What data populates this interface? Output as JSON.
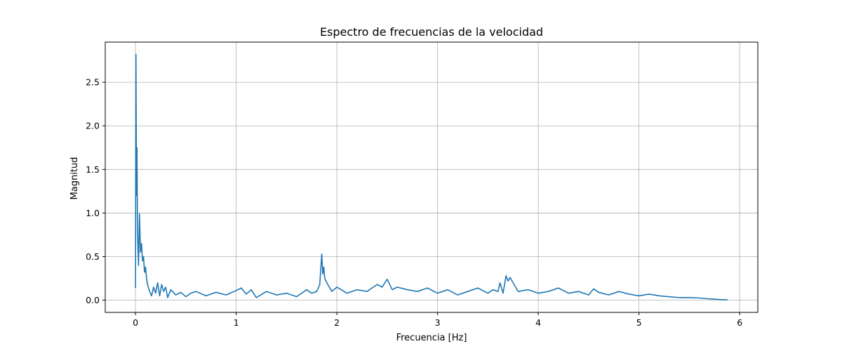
{
  "chart_data": {
    "type": "line",
    "title": "Espectro de frecuencias de la velocidad",
    "xlabel": "Frecuencia [Hz]",
    "ylabel": "Magnitud",
    "xlim": [
      -0.3,
      6.18
    ],
    "ylim": [
      -0.14,
      2.96
    ],
    "xticks": [
      0,
      1,
      2,
      3,
      4,
      5,
      6
    ],
    "xtick_labels": [
      "0",
      "1",
      "2",
      "3",
      "4",
      "5",
      "6"
    ],
    "yticks": [
      0.0,
      0.5,
      1.0,
      1.5,
      2.0,
      2.5
    ],
    "ytick_labels": [
      "0.0",
      "0.5",
      "1.0",
      "1.5",
      "2.0",
      "2.5"
    ],
    "grid": true,
    "line_color": "#1f77b4",
    "series": [
      {
        "x": [
          0.0,
          0.005,
          0.01,
          0.015,
          0.02,
          0.03,
          0.04,
          0.05,
          0.06,
          0.07,
          0.08,
          0.09,
          0.1,
          0.11,
          0.12,
          0.14,
          0.16,
          0.18,
          0.2,
          0.22,
          0.24,
          0.26,
          0.28,
          0.3,
          0.32,
          0.35,
          0.4,
          0.45,
          0.5,
          0.55,
          0.6,
          0.7,
          0.8,
          0.9,
          1.0,
          1.05,
          1.1,
          1.15,
          1.2,
          1.3,
          1.4,
          1.5,
          1.6,
          1.7,
          1.75,
          1.8,
          1.83,
          1.85,
          1.86,
          1.87,
          1.88,
          1.9,
          1.95,
          2.0,
          2.1,
          2.2,
          2.3,
          2.4,
          2.45,
          2.5,
          2.55,
          2.6,
          2.7,
          2.8,
          2.9,
          3.0,
          3.1,
          3.2,
          3.3,
          3.4,
          3.5,
          3.55,
          3.6,
          3.62,
          3.65,
          3.68,
          3.7,
          3.72,
          3.75,
          3.8,
          3.9,
          4.0,
          4.1,
          4.2,
          4.3,
          4.4,
          4.5,
          4.55,
          4.6,
          4.7,
          4.8,
          4.9,
          5.0,
          5.1,
          5.2,
          5.3,
          5.4,
          5.5,
          5.6,
          5.7,
          5.8,
          5.88
        ],
        "y": [
          0.14,
          2.82,
          1.2,
          1.75,
          0.8,
          0.4,
          0.99,
          0.55,
          0.65,
          0.45,
          0.5,
          0.32,
          0.38,
          0.25,
          0.18,
          0.1,
          0.05,
          0.15,
          0.08,
          0.2,
          0.05,
          0.18,
          0.1,
          0.15,
          0.03,
          0.12,
          0.06,
          0.09,
          0.04,
          0.08,
          0.1,
          0.05,
          0.09,
          0.06,
          0.11,
          0.14,
          0.07,
          0.12,
          0.03,
          0.1,
          0.06,
          0.08,
          0.04,
          0.12,
          0.08,
          0.1,
          0.18,
          0.53,
          0.3,
          0.38,
          0.25,
          0.2,
          0.1,
          0.15,
          0.08,
          0.12,
          0.1,
          0.18,
          0.15,
          0.24,
          0.12,
          0.15,
          0.12,
          0.1,
          0.14,
          0.08,
          0.12,
          0.06,
          0.1,
          0.14,
          0.08,
          0.12,
          0.1,
          0.2,
          0.08,
          0.28,
          0.22,
          0.26,
          0.2,
          0.1,
          0.12,
          0.08,
          0.1,
          0.14,
          0.08,
          0.1,
          0.06,
          0.13,
          0.09,
          0.06,
          0.1,
          0.07,
          0.05,
          0.07,
          0.05,
          0.04,
          0.03,
          0.03,
          0.025,
          0.015,
          0.008,
          0.005
        ]
      }
    ]
  }
}
